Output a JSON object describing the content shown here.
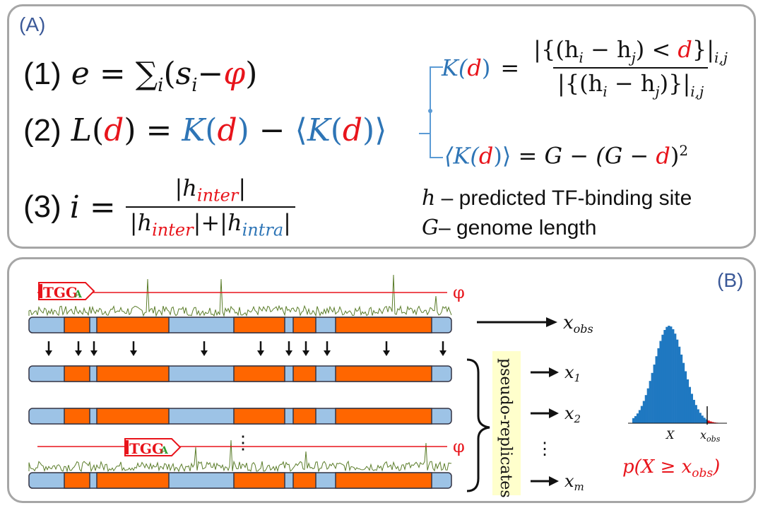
{
  "panel_a": {
    "tag": "(A)",
    "eq1": {
      "num": "(1)",
      "lhs": "e",
      "eq": "=",
      "sum": "∑",
      "sub": "i",
      "open": "(",
      "s": "s",
      "s_sub": "i",
      "minus": "−",
      "phi": "φ",
      "close": ")"
    },
    "eq2": {
      "num": "(2)",
      "L": "L",
      "d": "d",
      "K": "K",
      "eq": "=",
      "minus": "−",
      "langle": "⟨",
      "rangle": "⟩"
    },
    "eq3": {
      "num": "(3)",
      "lhs": "i",
      "eq": "=",
      "h": "h",
      "inter": "inter",
      "intra": "intra",
      "bar": "|",
      "plus": "+"
    },
    "k_def": {
      "lhs": "K(",
      "d": "d",
      "rhs_close": ")",
      "eq": "=",
      "numerator_pre": "|{(h",
      "sub_i": "i",
      "minus": " − h",
      "sub_j": "j",
      "lt": ") < ",
      "numerator_post": "}|",
      "subscript_ij": "i,j",
      "denominator_pre": "|{(h",
      "denominator_post": ")}|"
    },
    "expected_k": {
      "lhs": "⟨K(",
      "d": "d",
      "lhs_close": ")⟩",
      "rhs_pre": " = G − (G − ",
      "rhs_post": ")",
      "power": "2"
    },
    "legend_h": {
      "sym": "h",
      "text": " – predicted TF-binding site"
    },
    "legend_g": {
      "sym": "G",
      "text": "– genome length"
    }
  },
  "panel_b": {
    "tag": "(B)",
    "phi_label": "φ",
    "motif_label": "TGG",
    "motif_tail": "A",
    "x_obs": "x",
    "x_obs_sub": "obs",
    "x1": "x",
    "x1_sub": "1",
    "x2": "x",
    "x2_sub": "2",
    "xm": "x",
    "xm_sub": "m",
    "vdots": "⋮",
    "pseudo_replicates": "pseudo-replicates",
    "hist_x_label": "X",
    "hist_xobs": "x",
    "hist_xobs_sub": "obs",
    "p_value": "p(X ≥ x",
    "p_value_sub": "obs",
    "p_value_close": ")"
  },
  "colors": {
    "panel_border": "#a6a6a6",
    "tag_blue": "#3b5998",
    "accent_red": "#e8141b",
    "formula_blue": "#2e75b6",
    "bar_light": "#9dc3e6",
    "bar_orange": "#ff6600",
    "noise_green": "#5b7d2a",
    "histogram_blue": "#1f78c1",
    "highlight_yellow": "#ffffcc"
  }
}
